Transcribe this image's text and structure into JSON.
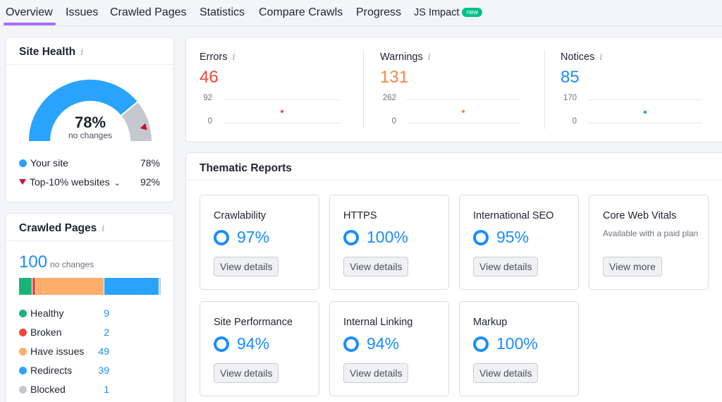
{
  "nav": {
    "tabs": [
      "Overview",
      "Issues",
      "Crawled Pages",
      "Statistics",
      "Compare Crawls",
      "Progress",
      "JS Impact"
    ],
    "active": "Overview",
    "new_badge": "new"
  },
  "site_health": {
    "title": "Site Health",
    "info": "i",
    "percent": "78%",
    "percent_value": 78,
    "top10_value": 92,
    "note": "no changes",
    "legend": [
      {
        "label": "Your site",
        "value": "78%",
        "color": "#2aa3ff"
      },
      {
        "label": "Top-10% websites",
        "value": "92%",
        "color": "#c8102e"
      }
    ]
  },
  "crawled_pages": {
    "title": "Crawled Pages",
    "info": "i",
    "total": "100",
    "note": "no changes",
    "rows": [
      {
        "label": "Healthy",
        "value": "9",
        "color": "#1ab37a",
        "share": 9
      },
      {
        "label": "Broken",
        "value": "2",
        "color": "#f4453e",
        "share": 2
      },
      {
        "label": "Have issues",
        "value": "49",
        "color": "#ffad6a",
        "share": 49
      },
      {
        "label": "Redirects",
        "value": "39",
        "color": "#2aa3ff",
        "share": 39
      },
      {
        "label": "Blocked",
        "value": "1",
        "color": "#c5c8cf",
        "share": 1
      }
    ]
  },
  "metrics": [
    {
      "label": "Errors",
      "info": "i",
      "value": "46",
      "color": "#f4453e",
      "ymax": "92",
      "ymin": "0"
    },
    {
      "label": "Warnings",
      "info": "i",
      "value": "131",
      "color": "#ff8243",
      "ymax": "262",
      "ymin": "0"
    },
    {
      "label": "Notices",
      "info": "i",
      "value": "85",
      "color": "#1a8cff",
      "ymax": "170",
      "ymin": "0"
    }
  ],
  "thematic": {
    "title": "Thematic Reports",
    "reports": [
      {
        "name": "Crawlability",
        "pct": "97%",
        "button": "View details"
      },
      {
        "name": "HTTPS",
        "pct": "100%",
        "button": "View details"
      },
      {
        "name": "International SEO",
        "pct": "95%",
        "button": "View details"
      },
      {
        "name": "Core Web Vitals",
        "sub": "Available with a paid plan",
        "button": "View more"
      },
      {
        "name": "Site Performance",
        "pct": "94%",
        "button": "View details"
      },
      {
        "name": "Internal Linking",
        "pct": "94%",
        "button": "View details"
      },
      {
        "name": "Markup",
        "pct": "100%",
        "button": "View details"
      }
    ]
  }
}
